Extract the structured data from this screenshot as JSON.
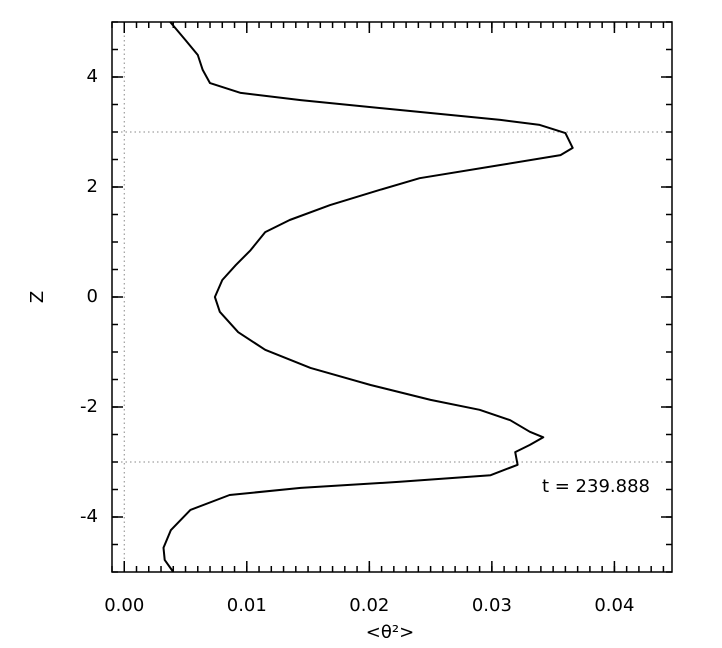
{
  "chart_data": {
    "type": "line",
    "x_label": "<θ²>",
    "y_label": "Z",
    "annotation": "t = 239.888",
    "xlim": [
      -0.001,
      0.0447
    ],
    "ylim": [
      -5,
      5
    ],
    "xticks": [
      {
        "value": 0,
        "label": "0.00"
      },
      {
        "value": 0.01,
        "label": "0.01"
      },
      {
        "value": 0.02,
        "label": "0.02"
      },
      {
        "value": 0.03,
        "label": "0.03"
      },
      {
        "value": 0.04,
        "label": "0.04"
      }
    ],
    "yticks": [
      -4,
      -2,
      0,
      2,
      4
    ],
    "x_minor_per_major": 10,
    "y_minor_per_major": 4,
    "reference_lines": {
      "x": [
        0
      ],
      "y": [
        3,
        -3
      ]
    },
    "series": [
      {
        "color": "#000000",
        "z": [
          5,
          4.67,
          4.4,
          4.13,
          3.89,
          3.71,
          3.58,
          3.4,
          3.22,
          3.13,
          2.98,
          2.71,
          2.58,
          2.4,
          2.16,
          1.95,
          1.67,
          1.4,
          1.18,
          0.85,
          0.58,
          0.31,
          0,
          -0.27,
          -0.64,
          -0.96,
          -1.29,
          -1.6,
          -1.87,
          -2.05,
          -2.24,
          -2.45,
          -2.55,
          -2.69,
          -2.82,
          -3.05,
          -3.24,
          -3.36,
          -3.47,
          -3.6,
          -3.87,
          -4.24,
          -4.56,
          -4.78,
          -5
        ],
        "values": [
          0.00375,
          0.005,
          0.006,
          0.0064,
          0.007,
          0.0095,
          0.0144,
          0.0225,
          0.0307,
          0.0339,
          0.036,
          0.0366,
          0.0356,
          0.0307,
          0.0241,
          0.0209,
          0.0168,
          0.0135,
          0.0115,
          0.0103,
          0.0091,
          0.008,
          0.0074,
          0.0078,
          0.0093,
          0.0115,
          0.0152,
          0.0201,
          0.025,
          0.029,
          0.0315,
          0.0331,
          0.0342,
          0.0331,
          0.0319,
          0.0321,
          0.0299,
          0.0225,
          0.0144,
          0.0086,
          0.0054,
          0.0038,
          0.0032,
          0.0033,
          0.004
        ]
      }
    ]
  }
}
